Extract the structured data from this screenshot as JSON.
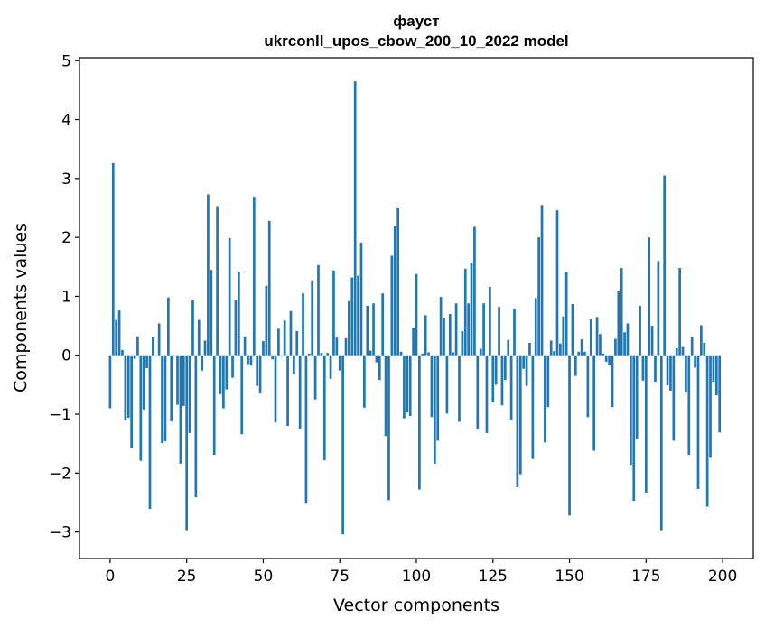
{
  "chart_data": {
    "type": "bar",
    "title": "фауст",
    "subtitle": "ukrconll_upos_cbow_200_10_2022 model",
    "xlabel": "Vector components",
    "ylabel": "Components values",
    "xlim": [
      -10,
      210
    ],
    "ylim": [
      -3.45,
      5.05
    ],
    "xticks": [
      0,
      25,
      50,
      75,
      100,
      125,
      150,
      175,
      200
    ],
    "yticks": [
      -3,
      -2,
      -1,
      0,
      1,
      2,
      3,
      4,
      5
    ],
    "xtick_labels": [
      "0",
      "25",
      "50",
      "75",
      "100",
      "125",
      "150",
      "175",
      "200"
    ],
    "ytick_labels": [
      "−3",
      "−2",
      "−1",
      "0",
      "1",
      "2",
      "3",
      "4",
      "5"
    ],
    "grid": false,
    "bar_color": "#1f77b4",
    "values": [
      -0.9,
      3.26,
      0.6,
      0.76,
      0.09,
      -1.1,
      -1.06,
      -1.57,
      -0.06,
      0.32,
      -1.79,
      -0.92,
      -0.22,
      -2.61,
      0.31,
      -0.02,
      0.54,
      -1.49,
      -1.46,
      0.98,
      -1.12,
      -0.02,
      -0.84,
      -1.84,
      -0.86,
      -2.97,
      -1.32,
      0.93,
      -2.41,
      0.6,
      -0.26,
      0.25,
      2.73,
      1.45,
      -1.69,
      2.53,
      -0.66,
      -0.9,
      -0.58,
      1.99,
      -0.38,
      0.93,
      1.42,
      -1.34,
      0.32,
      -0.15,
      -0.17,
      2.69,
      -0.52,
      -0.65,
      0.24,
      1.18,
      2.28,
      -0.07,
      -1.14,
      0.45,
      -0.02,
      0.59,
      -1.2,
      0.75,
      -0.32,
      0.41,
      -1.26,
      1.05,
      -2.52,
      0.03,
      1.27,
      -0.75,
      1.53,
      0.04,
      -1.78,
      0.04,
      -0.4,
      1.44,
      0.3,
      -0.26,
      -3.04,
      0.29,
      0.92,
      1.32,
      4.65,
      1.35,
      1.91,
      -0.89,
      0.84,
      0.08,
      0.88,
      -0.12,
      -0.42,
      1.05,
      -1.37,
      -2.46,
      1.69,
      2.19,
      2.51,
      0.06,
      -1.07,
      -0.97,
      -1.03,
      0.47,
      1.38,
      -2.28,
      0.03,
      0.68,
      0.05,
      -1.05,
      -1.84,
      -1.45,
      0.99,
      0.64,
      -0.99,
      0.7,
      0.05,
      0.88,
      -1.13,
      0.41,
      1.47,
      0.88,
      1.57,
      2.18,
      -1.26,
      0.11,
      0.88,
      -1.32,
      1.16,
      -0.8,
      -0.5,
      0.82,
      -0.85,
      -0.42,
      0.26,
      -1.09,
      0.79,
      -2.24,
      -2.02,
      -0.23,
      -0.52,
      0.21,
      -1.76,
      0.97,
      2.0,
      2.55,
      -1.48,
      -0.88,
      0.25,
      0.07,
      2.46,
      0.2,
      0.66,
      1.41,
      -2.72,
      0.87,
      -0.35,
      0.06,
      0.27,
      0.06,
      -1.05,
      0.61,
      -1.62,
      0.65,
      0.36,
      0.03,
      -0.11,
      -0.17,
      -0.88,
      0.28,
      1.1,
      1.48,
      0.39,
      0.54,
      -1.86,
      -2.47,
      -1.42,
      0.84,
      -0.43,
      -2.33,
      2.0,
      0.5,
      -0.45,
      1.6,
      -2.97,
      3.05,
      -0.51,
      -0.6,
      -1.45,
      0.12,
      1.48,
      0.14,
      -0.63,
      -1.69,
      0.31,
      -0.21,
      -2.27,
      0.51,
      0.21,
      -2.57,
      -1.74,
      -0.45,
      -0.68,
      -1.31
    ]
  }
}
